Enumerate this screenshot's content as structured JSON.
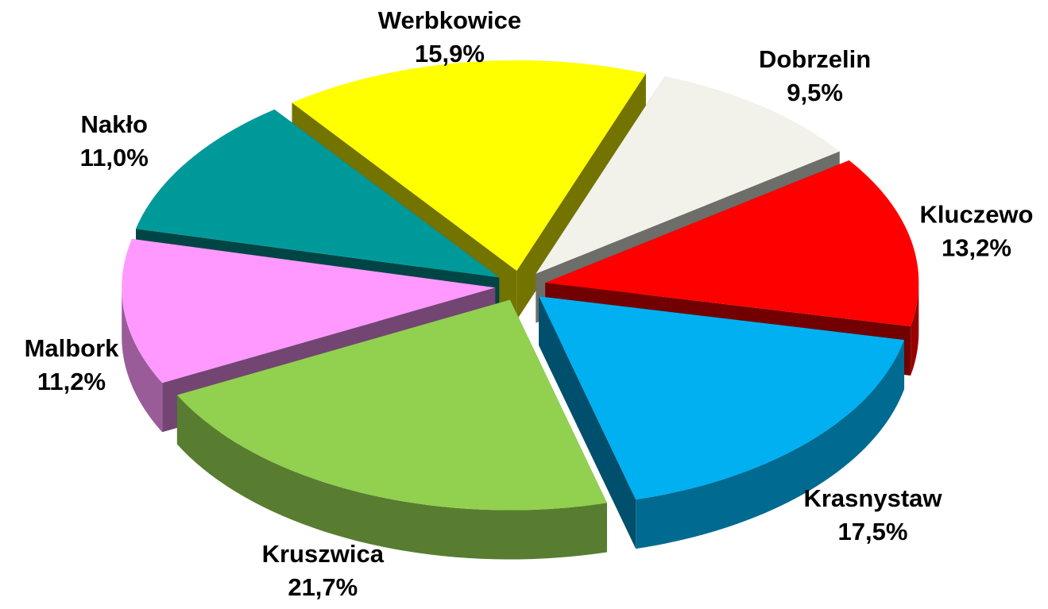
{
  "chart_data": {
    "type": "pie3d",
    "categories": [
      "Werbkowice",
      "Dobrzelin",
      "Kluczewo",
      "Krasnystaw",
      "Kruszwica",
      "Malbork",
      "Nakło"
    ],
    "values": [
      15.9,
      9.5,
      13.2,
      17.5,
      21.7,
      11.2,
      11.0
    ],
    "value_labels": [
      "15,9%",
      "9,5%",
      "13,2%",
      "17,5%",
      "21,7%",
      "11,2%",
      "11,0%"
    ],
    "colors": [
      "#ffff00",
      "#f2f2ea",
      "#ff0000",
      "#00b0f0",
      "#92d050",
      "#ff99ff",
      "#009999"
    ]
  }
}
